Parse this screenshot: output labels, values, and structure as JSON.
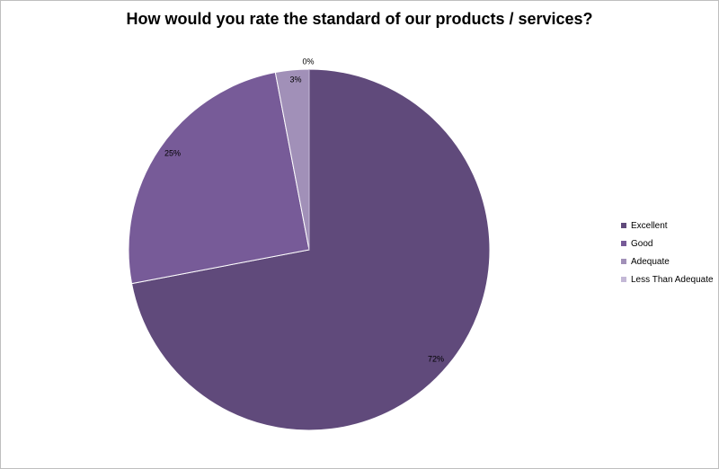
{
  "chart_data": {
    "type": "pie",
    "title": "How would you rate the standard of our products / services?",
    "categories": [
      "Excellent",
      "Good",
      "Adequate",
      "Less Than Adequate"
    ],
    "values": [
      72,
      25,
      3,
      0
    ],
    "data_labels": [
      "72%",
      "25%",
      "3%",
      "0%"
    ],
    "colors": [
      "#604a7b",
      "#775b98",
      "#a190b8",
      "#c4b8d6"
    ],
    "legend": "right"
  }
}
